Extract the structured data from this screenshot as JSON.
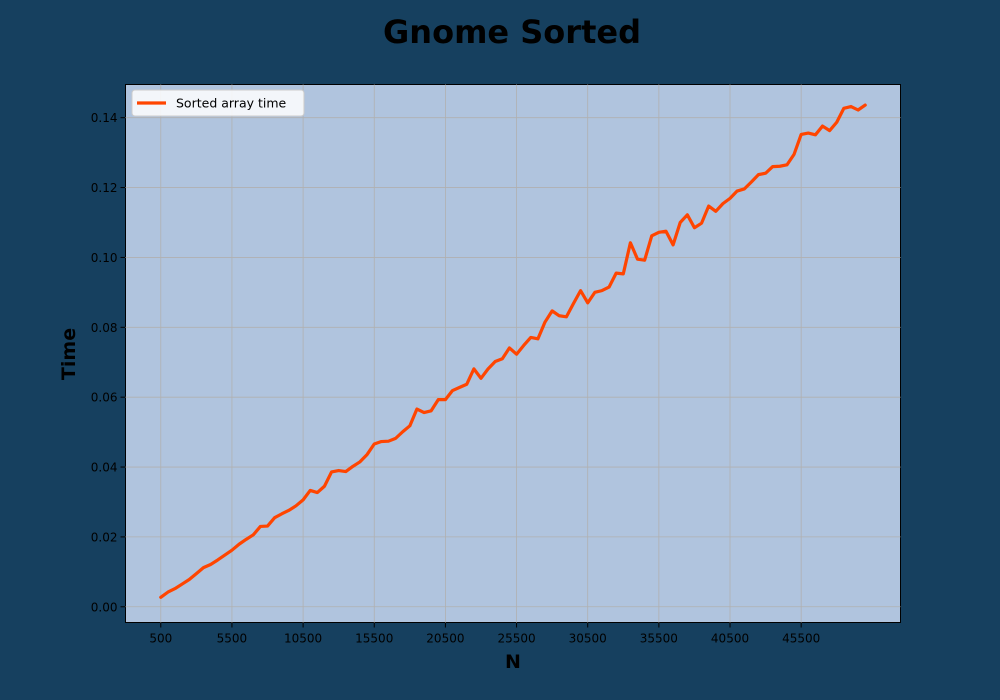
{
  "chart_data": {
    "type": "line",
    "title": "Gnome Sorted",
    "xlabel": "N",
    "ylabel": "Time",
    "xlim": [
      -1980,
      52480
    ],
    "ylim": [
      -0.0045,
      0.1495
    ],
    "xticks": [
      500,
      5500,
      10500,
      15500,
      20500,
      25500,
      30500,
      35500,
      40500,
      45500
    ],
    "yticks": [
      0.0,
      0.02,
      0.04,
      0.06,
      0.08,
      0.1,
      0.12,
      0.14
    ],
    "ytick_labels": [
      "0.00",
      "0.02",
      "0.04",
      "0.06",
      "0.08",
      "0.10",
      "0.12",
      "0.14"
    ],
    "grid": true,
    "legend_position": "upper-left",
    "colors": {
      "background": "#16405f",
      "plot_area": "#b0c4de",
      "line": "#ff4500",
      "grid": "#b0b0b0"
    },
    "series": [
      {
        "name": "Sorted array time",
        "x_start": 500,
        "x_step": 500,
        "values": [
          0.0027,
          0.0042,
          0.0052,
          0.0065,
          0.0078,
          0.0095,
          0.0112,
          0.0121,
          0.0134,
          0.0148,
          0.0162,
          0.0179,
          0.0193,
          0.0206,
          0.023,
          0.0231,
          0.0255,
          0.0266,
          0.0276,
          0.0289,
          0.0306,
          0.0333,
          0.0327,
          0.0345,
          0.0386,
          0.039,
          0.0387,
          0.0402,
          0.0415,
          0.0436,
          0.0466,
          0.0473,
          0.0474,
          0.0482,
          0.0501,
          0.0518,
          0.0566,
          0.0556,
          0.0561,
          0.0593,
          0.0593,
          0.0619,
          0.0628,
          0.0637,
          0.0681,
          0.0654,
          0.0681,
          0.0702,
          0.071,
          0.0741,
          0.0723,
          0.0748,
          0.0771,
          0.0767,
          0.0815,
          0.0847,
          0.0833,
          0.083,
          0.0868,
          0.0905,
          0.087,
          0.09,
          0.0905,
          0.0915,
          0.0955,
          0.0953,
          0.1042,
          0.0995,
          0.0992,
          0.1062,
          0.1072,
          0.1075,
          0.1036,
          0.11,
          0.1122,
          0.1085,
          0.1098,
          0.1147,
          0.1132,
          0.1154,
          0.1169,
          0.119,
          0.1196,
          0.1216,
          0.1237,
          0.1241,
          0.126,
          0.1261,
          0.1265,
          0.1295,
          0.1352,
          0.1356,
          0.1351,
          0.1376,
          0.1363,
          0.1387,
          0.1427,
          0.1432,
          0.1422,
          0.1436
        ]
      }
    ]
  }
}
